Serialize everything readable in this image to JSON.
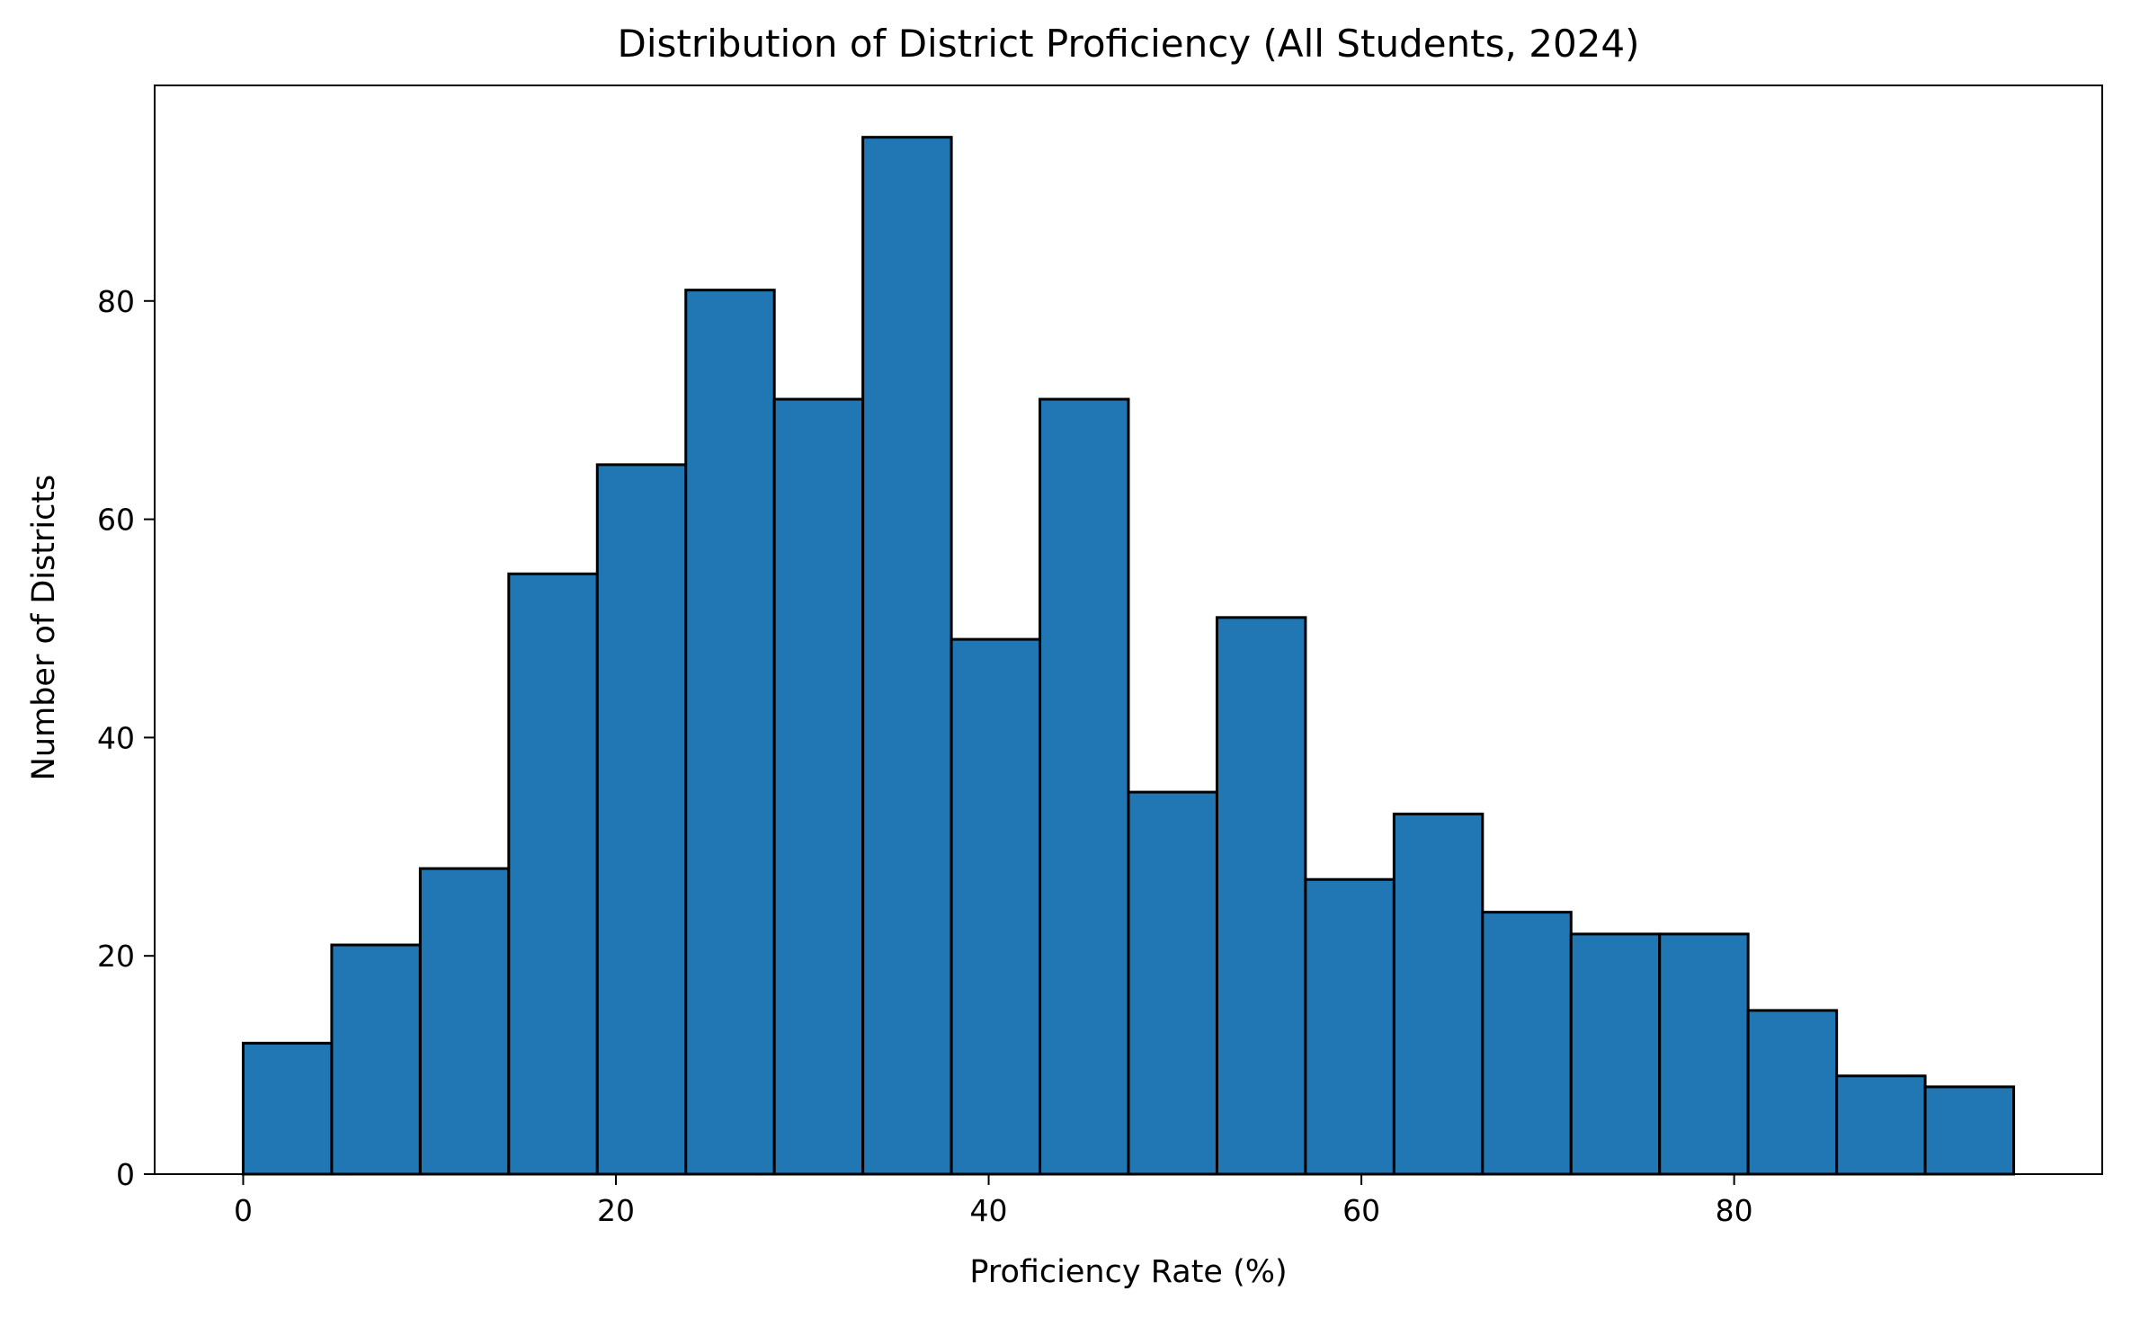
{
  "chart_data": {
    "type": "bar",
    "title": "Distribution of District Proficiency (All Students, 2024)",
    "xlabel": "Proficiency Rate (%)",
    "ylabel": "Number of Districts",
    "bin_edges": [
      0,
      4.75,
      9.5,
      14.25,
      19,
      23.75,
      28.5,
      33.25,
      38,
      42.75,
      47.5,
      52.25,
      57,
      61.75,
      66.5,
      71.25,
      76,
      80.75,
      85.5,
      90.25,
      95
    ],
    "values": [
      12,
      21,
      28,
      55,
      65,
      81,
      71,
      95,
      49,
      71,
      35,
      51,
      27,
      33,
      24,
      22,
      22,
      15,
      9,
      8
    ],
    "xlim": [
      -4.75,
      99.75
    ],
    "ylim": [
      0,
      99.75
    ],
    "xticks": [
      0,
      20,
      40,
      60,
      80
    ],
    "yticks": [
      0,
      20,
      40,
      60,
      80
    ],
    "bar_color": "#2077b4",
    "edge_color": "#000000",
    "grid": false,
    "legend": false
  }
}
